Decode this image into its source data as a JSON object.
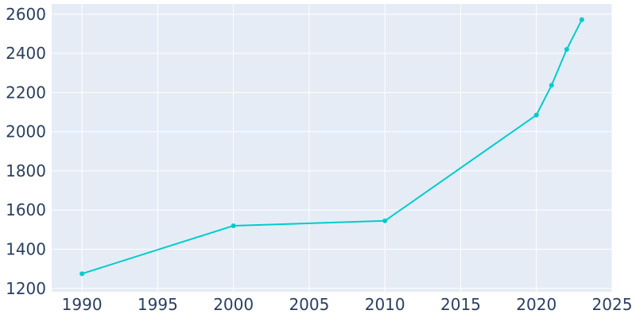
{
  "chart_data": {
    "type": "line",
    "x": [
      1990,
      2000,
      2010,
      2020,
      2021,
      2022,
      2023
    ],
    "y": [
      1275,
      1520,
      1545,
      2085,
      2237,
      2420,
      2572
    ],
    "xlim": [
      1988,
      2025
    ],
    "ylim": [
      1183,
      2652
    ],
    "xticks": [
      1990,
      1995,
      2000,
      2005,
      2010,
      2015,
      2020,
      2025
    ],
    "yticks": [
      1200,
      1400,
      1600,
      1800,
      2000,
      2200,
      2400,
      2600
    ],
    "xtick_labels": [
      "1990",
      "1995",
      "2000",
      "2005",
      "2010",
      "2015",
      "2020",
      "2025"
    ],
    "ytick_labels": [
      "1200",
      "1400",
      "1600",
      "1800",
      "2000",
      "2200",
      "2400",
      "2600"
    ],
    "grid": true,
    "colors": {
      "plot_bg": "#e5ecf6",
      "grid": "#ffffff",
      "line": "#00cccc",
      "text": "#2a3f5f"
    }
  }
}
